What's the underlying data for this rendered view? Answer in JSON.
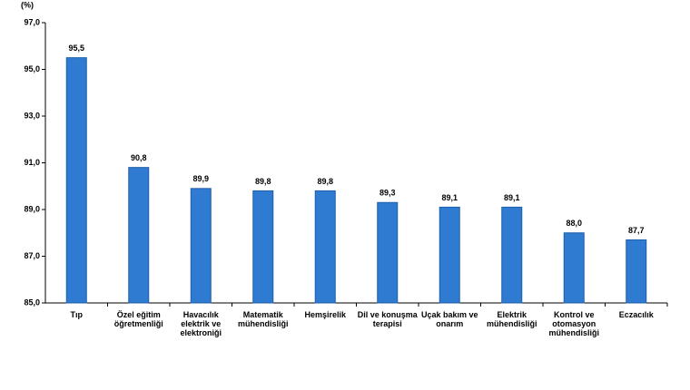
{
  "chart_data": {
    "type": "bar",
    "unit_label": "(%)",
    "categories": [
      "Tıp",
      "Özel eğitim öğretmenliği",
      "Havacılık elektrik ve elektroniği",
      "Matematik mühendisliği",
      "Hemşirelik",
      "Dil ve konuşma terapisi",
      "Uçak bakım ve onarım",
      "Elektrik mühendisliği",
      "Kontrol ve otomasyon mühendisliği",
      "Eczacılık"
    ],
    "values": [
      95.5,
      90.8,
      89.9,
      89.8,
      89.8,
      89.3,
      89.1,
      89.1,
      88.0,
      87.7
    ],
    "value_labels": [
      "95,5",
      "90,8",
      "89,9",
      "89,8",
      "89,8",
      "89,3",
      "89,1",
      "89,1",
      "88,0",
      "87,7"
    ],
    "color": "#2f7bd1",
    "ylim": [
      85,
      97
    ],
    "yticks": [
      {
        "value": 85,
        "label": "85,0"
      },
      {
        "value": 87,
        "label": "87,0"
      },
      {
        "value": 89,
        "label": "89,0"
      },
      {
        "value": 91,
        "label": "91,0"
      },
      {
        "value": 93,
        "label": "93,0"
      },
      {
        "value": 95,
        "label": "95,0"
      },
      {
        "value": 97,
        "label": "97,0"
      }
    ],
    "grid": false
  }
}
